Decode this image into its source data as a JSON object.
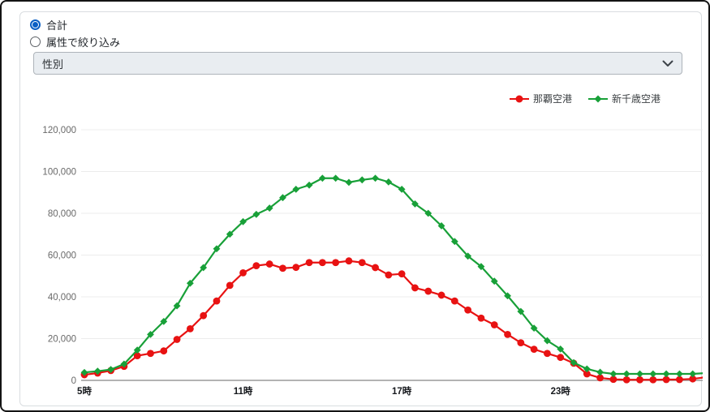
{
  "controls": {
    "radio_total": {
      "label": "合計",
      "selected": true
    },
    "radio_attribute": {
      "label": "属性で絞り込み",
      "selected": false
    },
    "dropdown": {
      "value": "性別"
    }
  },
  "colors": {
    "naha_red": "#e81212",
    "chitose_green": "#18a038",
    "grid": "#ececec",
    "axis": "#9a9a9a",
    "y_label": "#696969",
    "x_label": "#16191d",
    "radio_blue": "#0b5fc4"
  },
  "chart_data": {
    "type": "line",
    "x_start_hour": 5,
    "x_interval_hours": 0.5,
    "x_tick_labels": [
      "5時",
      "11時",
      "17時",
      "23時"
    ],
    "x_tick_indices": [
      0,
      12,
      24,
      36
    ],
    "y_ticks": [
      0,
      20000,
      40000,
      60000,
      80000,
      100000,
      120000
    ],
    "ylim": [
      0,
      120000
    ],
    "grid": "horizontal-only",
    "legend_position": "top-right",
    "series": [
      {
        "name": "那覇空港",
        "color": "#e81212",
        "marker": "circle",
        "values": [
          2700,
          3500,
          4700,
          6700,
          11800,
          12900,
          14100,
          19600,
          24700,
          31000,
          38000,
          45500,
          51500,
          54900,
          55700,
          53700,
          54100,
          56400,
          56400,
          56400,
          57200,
          56400,
          54000,
          50500,
          51000,
          44300,
          42700,
          40800,
          38000,
          33700,
          29800,
          26600,
          22000,
          18000,
          14900,
          12900,
          11000,
          8200,
          3100,
          1200,
          500,
          300,
          300,
          300,
          400,
          400,
          700,
          1500
        ]
      },
      {
        "name": "新千歳空港",
        "color": "#18a038",
        "marker": "diamond",
        "values": [
          3800,
          4400,
          5200,
          7800,
          14500,
          22000,
          28200,
          35700,
          46500,
          54000,
          63000,
          70000,
          76000,
          79500,
          82500,
          87500,
          91500,
          93500,
          96800,
          96800,
          94800,
          96000,
          96800,
          95000,
          91500,
          84500,
          80000,
          74000,
          66500,
          59500,
          54500,
          47500,
          40500,
          33000,
          25000,
          19000,
          15000,
          8500,
          5500,
          3900,
          3100,
          3100,
          3100,
          3100,
          3100,
          3100,
          3100,
          3500
        ]
      }
    ]
  }
}
